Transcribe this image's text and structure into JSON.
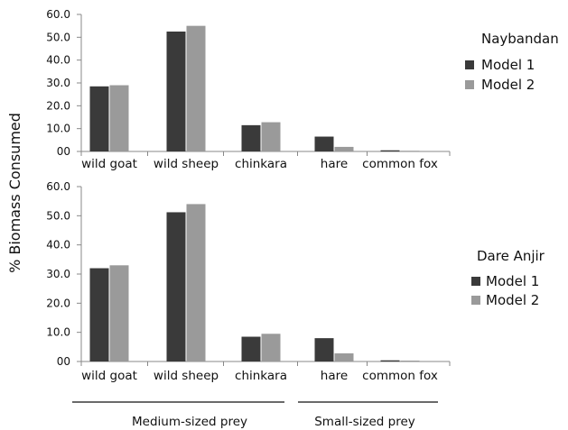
{
  "figure": {
    "ylabel": "% Biomass Consumed",
    "group_labels": [
      "Medium-sized prey",
      "Small-sized prey"
    ],
    "colors": {
      "Model 1": "#3a3a3a",
      "Model 2": "#9a9a9a"
    }
  },
  "chart_data": [
    {
      "type": "bar",
      "legend_title": "Naybandan",
      "categories": [
        "wild goat",
        "wild sheep",
        "chinkara",
        "hare",
        "common fox"
      ],
      "series": [
        {
          "name": "Model 1",
          "values": [
            28.5,
            52.5,
            11.5,
            6.5,
            0.5
          ]
        },
        {
          "name": "Model 2",
          "values": [
            29.0,
            55.0,
            12.8,
            2.0,
            0.3
          ]
        }
      ],
      "yticks": [
        "00",
        "10.0",
        "20.0",
        "30.0",
        "40.0",
        "50.0",
        "60.0"
      ],
      "ylim": [
        0,
        60
      ],
      "legend_position": "right"
    },
    {
      "type": "bar",
      "legend_title": "Dare Anjir",
      "categories": [
        "wild goat",
        "wild sheep",
        "chinkara",
        "hare",
        "common fox"
      ],
      "series": [
        {
          "name": "Model 1",
          "values": [
            32.0,
            51.2,
            8.5,
            8.0,
            0.4
          ]
        },
        {
          "name": "Model 2",
          "values": [
            33.0,
            54.0,
            9.5,
            2.8,
            0.3
          ]
        }
      ],
      "yticks": [
        "00",
        "10.0",
        "20.0",
        "30.0",
        "40.0",
        "50.0",
        "60.0"
      ],
      "ylim": [
        0,
        60
      ],
      "legend_position": "right"
    }
  ]
}
